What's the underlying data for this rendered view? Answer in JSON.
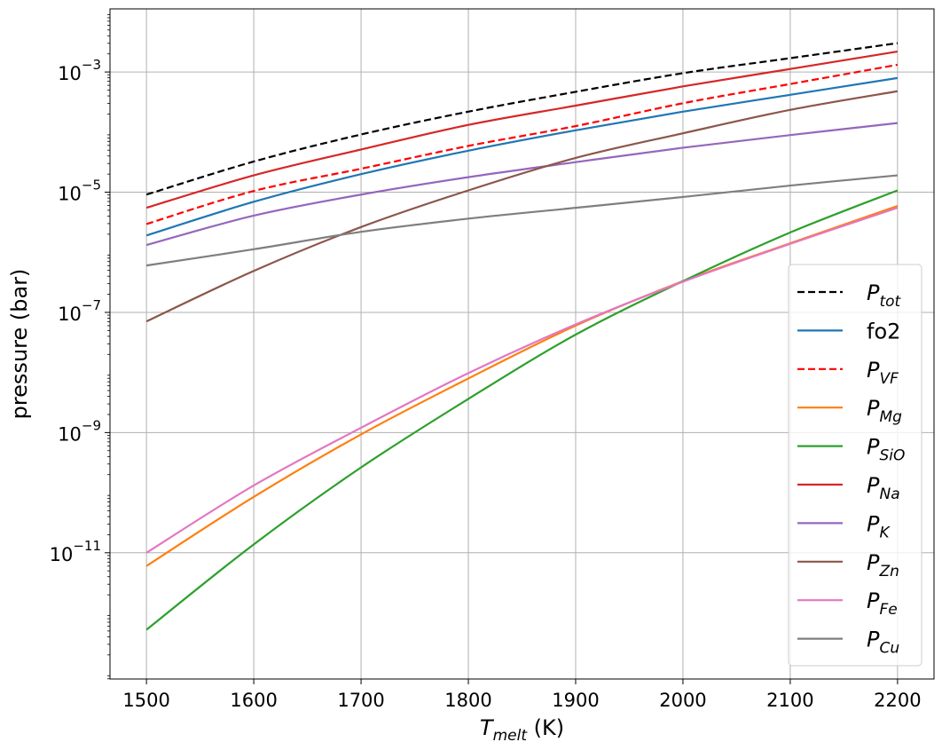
{
  "chart_data": {
    "type": "line",
    "xlabel": {
      "main": "T",
      "sub": "melt",
      "suffix": " (K)"
    },
    "ylabel": "pressure (bar)",
    "xlim": [
      1466,
      2234
    ],
    "ylim_log10": [
      -13.1,
      -1.95
    ],
    "yscale": "log",
    "grid": true,
    "legend_position": "lower-right",
    "x_ticks": [
      1500,
      1600,
      1700,
      1800,
      1900,
      2000,
      2100,
      2200
    ],
    "x_tick_labels": [
      "1500",
      "1600",
      "1700",
      "1800",
      "1900",
      "2000",
      "2100",
      "2200"
    ],
    "y_ticks": [
      {
        "exp": -3,
        "label_base": "10",
        "label_exp": "−3"
      },
      {
        "exp": -5,
        "label_base": "10",
        "label_exp": "−5"
      },
      {
        "exp": -7,
        "label_base": "10",
        "label_exp": "−7"
      },
      {
        "exp": -9,
        "label_base": "10",
        "label_exp": "−9"
      },
      {
        "exp": -11,
        "label_base": "10",
        "label_exp": "−11"
      }
    ],
    "x": [
      1500,
      1600,
      1700,
      1800,
      1900,
      2000,
      2100,
      2200
    ],
    "series": [
      {
        "name": "tot",
        "legend_main": "P",
        "legend_sub": "tot",
        "color": "#000000",
        "dash": true,
        "log10_values": [
          -5.04,
          -4.49,
          -4.04,
          -3.66,
          -3.33,
          -3.02,
          -2.77,
          -2.52
        ]
      },
      {
        "name": "fo2",
        "legend_main": "fo2",
        "legend_sub": "",
        "color": "#1f77b4",
        "dash": false,
        "log10_values": [
          -5.72,
          -5.16,
          -4.7,
          -4.31,
          -3.97,
          -3.66,
          -3.38,
          -3.1
        ]
      },
      {
        "name": "VF",
        "legend_main": "P",
        "legend_sub": "VF",
        "color": "#ff0000",
        "dash": true,
        "log10_values": [
          -5.53,
          -4.98,
          -4.61,
          -4.23,
          -3.9,
          -3.52,
          -3.2,
          -2.88
        ]
      },
      {
        "name": "Mg",
        "legend_main": "P",
        "legend_sub": "Mg",
        "color": "#ff7f0e",
        "dash": false,
        "log10_values": [
          -11.22,
          -10.07,
          -9.03,
          -8.1,
          -7.22,
          -6.48,
          -5.85,
          -5.23
        ]
      },
      {
        "name": "SiO",
        "legend_main": "P",
        "legend_sub": "SiO",
        "color": "#2ca02c",
        "dash": false,
        "log10_values": [
          -12.28,
          -10.86,
          -9.58,
          -8.44,
          -7.37,
          -6.48,
          -5.67,
          -4.97
        ]
      },
      {
        "name": "Na",
        "legend_main": "P",
        "legend_sub": "Na",
        "color": "#d62728",
        "dash": false,
        "log10_values": [
          -5.26,
          -4.72,
          -4.29,
          -3.88,
          -3.56,
          -3.24,
          -2.95,
          -2.66
        ]
      },
      {
        "name": "K",
        "legend_main": "P",
        "legend_sub": "K",
        "color": "#9467bd",
        "dash": false,
        "log10_values": [
          -5.88,
          -5.39,
          -5.04,
          -4.75,
          -4.5,
          -4.26,
          -4.05,
          -3.85
        ]
      },
      {
        "name": "Zn",
        "legend_main": "P",
        "legend_sub": "Zn",
        "color": "#8c564b",
        "dash": false,
        "log10_values": [
          -7.15,
          -6.31,
          -5.58,
          -4.97,
          -4.43,
          -4.02,
          -3.63,
          -3.32
        ]
      },
      {
        "name": "Fe",
        "legend_main": "P",
        "legend_sub": "Fe",
        "color": "#e377c2",
        "dash": false,
        "log10_values": [
          -11.0,
          -9.88,
          -8.92,
          -8.01,
          -7.2,
          -6.49,
          -5.86,
          -5.26
        ]
      },
      {
        "name": "Cu",
        "legend_main": "P",
        "legend_sub": "Cu",
        "color": "#7f7f7f",
        "dash": false,
        "log10_values": [
          -6.22,
          -5.95,
          -5.66,
          -5.44,
          -5.26,
          -5.08,
          -4.89,
          -4.72
        ]
      }
    ]
  }
}
